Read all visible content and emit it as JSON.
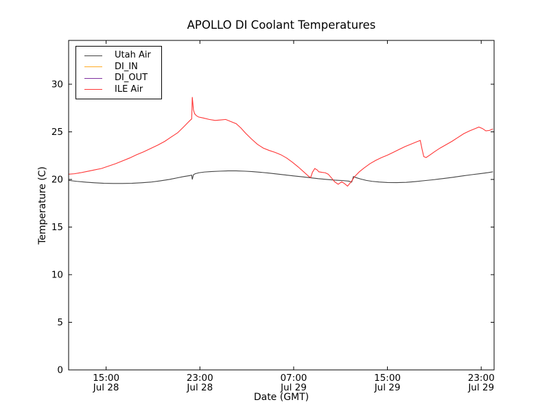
{
  "chart_data": {
    "type": "line",
    "title": "APOLLO DI Coolant Temperatures",
    "xlabel": "Date (GMT)",
    "ylabel": "Temperature (C)",
    "x_unit": "hours since Jul 28 00:00 GMT",
    "xlim": [
      11.8,
      48.1
    ],
    "ylim": [
      0,
      34.6
    ],
    "yticks": [
      0,
      5,
      10,
      15,
      20,
      25,
      30
    ],
    "xticks": [
      {
        "hour": 15,
        "time": "15:00",
        "date": "Jul 28"
      },
      {
        "hour": 23,
        "time": "23:00",
        "date": "Jul 28"
      },
      {
        "hour": 31,
        "time": "07:00",
        "date": "Jul 29"
      },
      {
        "hour": 39,
        "time": "15:00",
        "date": "Jul 29"
      },
      {
        "hour": 47,
        "time": "23:00",
        "date": "Jul 29"
      }
    ],
    "grid": false,
    "legend_position": "upper left",
    "axis_color": "#000000",
    "series": [
      {
        "name": "Utah Air",
        "color": "#404040",
        "points": [
          [
            11.8,
            19.9
          ],
          [
            12.5,
            19.8
          ],
          [
            13.2,
            19.72
          ],
          [
            14.0,
            19.65
          ],
          [
            14.8,
            19.6
          ],
          [
            15.6,
            19.58
          ],
          [
            16.4,
            19.58
          ],
          [
            17.2,
            19.6
          ],
          [
            18.0,
            19.65
          ],
          [
            18.8,
            19.72
          ],
          [
            19.6,
            19.85
          ],
          [
            20.4,
            20.0
          ],
          [
            21.0,
            20.15
          ],
          [
            21.6,
            20.3
          ],
          [
            22.1,
            20.4
          ],
          [
            22.3,
            20.45
          ],
          [
            22.35,
            20.0
          ],
          [
            22.45,
            20.5
          ],
          [
            22.6,
            20.6
          ],
          [
            22.9,
            20.7
          ],
          [
            23.4,
            20.78
          ],
          [
            24.0,
            20.83
          ],
          [
            24.7,
            20.87
          ],
          [
            25.4,
            20.9
          ],
          [
            26.1,
            20.9
          ],
          [
            26.8,
            20.87
          ],
          [
            27.5,
            20.82
          ],
          [
            28.2,
            20.75
          ],
          [
            28.9,
            20.67
          ],
          [
            29.6,
            20.57
          ],
          [
            30.3,
            20.47
          ],
          [
            31.0,
            20.37
          ],
          [
            31.7,
            20.28
          ],
          [
            32.4,
            20.18
          ],
          [
            33.1,
            20.08
          ],
          [
            33.8,
            20.0
          ],
          [
            34.5,
            19.93
          ],
          [
            35.2,
            19.88
          ],
          [
            35.7,
            19.82
          ],
          [
            35.95,
            19.72
          ],
          [
            36.1,
            20.3
          ],
          [
            36.3,
            20.2
          ],
          [
            36.7,
            20.05
          ],
          [
            37.2,
            19.9
          ],
          [
            37.7,
            19.8
          ],
          [
            38.3,
            19.73
          ],
          [
            39.0,
            19.68
          ],
          [
            39.8,
            19.67
          ],
          [
            40.6,
            19.7
          ],
          [
            41.4,
            19.78
          ],
          [
            42.2,
            19.88
          ],
          [
            43.0,
            19.98
          ],
          [
            43.8,
            20.1
          ],
          [
            44.6,
            20.23
          ],
          [
            45.4,
            20.37
          ],
          [
            46.2,
            20.5
          ],
          [
            47.0,
            20.62
          ],
          [
            47.6,
            20.72
          ],
          [
            48.0,
            20.8
          ]
        ]
      },
      {
        "name": "DI_IN",
        "color": "#ffaa22",
        "points": [
          [
            11.8,
            0
          ],
          [
            48.1,
            0
          ]
        ]
      },
      {
        "name": "DI_OUT",
        "color": "#7d2e9e",
        "points": [
          [
            11.8,
            0
          ],
          [
            48.1,
            0
          ]
        ]
      },
      {
        "name": "ILE Air",
        "color": "#ff3333",
        "points": [
          [
            11.8,
            20.55
          ],
          [
            12.3,
            20.6
          ],
          [
            12.8,
            20.7
          ],
          [
            13.4,
            20.85
          ],
          [
            14.0,
            21.0
          ],
          [
            14.6,
            21.15
          ],
          [
            15.2,
            21.4
          ],
          [
            15.8,
            21.65
          ],
          [
            16.4,
            21.95
          ],
          [
            17.0,
            22.25
          ],
          [
            17.6,
            22.6
          ],
          [
            18.2,
            22.9
          ],
          [
            18.8,
            23.25
          ],
          [
            19.4,
            23.6
          ],
          [
            20.0,
            24.0
          ],
          [
            20.6,
            24.5
          ],
          [
            21.1,
            24.9
          ],
          [
            21.6,
            25.5
          ],
          [
            22.0,
            26.0
          ],
          [
            22.2,
            26.25
          ],
          [
            22.3,
            26.35
          ],
          [
            22.35,
            28.65
          ],
          [
            22.45,
            27.3
          ],
          [
            22.55,
            26.9
          ],
          [
            22.7,
            26.7
          ],
          [
            22.9,
            26.55
          ],
          [
            23.3,
            26.45
          ],
          [
            23.8,
            26.3
          ],
          [
            24.3,
            26.2
          ],
          [
            24.8,
            26.25
          ],
          [
            25.2,
            26.3
          ],
          [
            25.7,
            26.05
          ],
          [
            26.1,
            25.85
          ],
          [
            26.5,
            25.4
          ],
          [
            26.9,
            24.85
          ],
          [
            27.4,
            24.25
          ],
          [
            27.9,
            23.7
          ],
          [
            28.4,
            23.3
          ],
          [
            28.9,
            23.05
          ],
          [
            29.4,
            22.85
          ],
          [
            29.9,
            22.6
          ],
          [
            30.4,
            22.25
          ],
          [
            30.9,
            21.8
          ],
          [
            31.4,
            21.3
          ],
          [
            31.9,
            20.75
          ],
          [
            32.3,
            20.3
          ],
          [
            32.45,
            20.2
          ],
          [
            32.6,
            20.75
          ],
          [
            32.8,
            21.15
          ],
          [
            33.0,
            21.0
          ],
          [
            33.15,
            20.8
          ],
          [
            33.4,
            20.75
          ],
          [
            33.7,
            20.7
          ],
          [
            33.95,
            20.55
          ],
          [
            34.2,
            20.2
          ],
          [
            34.5,
            19.75
          ],
          [
            34.8,
            19.5
          ],
          [
            35.1,
            19.75
          ],
          [
            35.3,
            19.6
          ],
          [
            35.6,
            19.3
          ],
          [
            35.9,
            19.75
          ],
          [
            36.2,
            20.3
          ],
          [
            36.6,
            20.8
          ],
          [
            37.0,
            21.2
          ],
          [
            37.5,
            21.65
          ],
          [
            38.0,
            22.0
          ],
          [
            38.5,
            22.3
          ],
          [
            39.0,
            22.55
          ],
          [
            39.5,
            22.85
          ],
          [
            40.0,
            23.15
          ],
          [
            40.5,
            23.45
          ],
          [
            41.0,
            23.7
          ],
          [
            41.5,
            23.95
          ],
          [
            41.8,
            24.1
          ],
          [
            41.95,
            23.2
          ],
          [
            42.1,
            22.4
          ],
          [
            42.3,
            22.3
          ],
          [
            42.6,
            22.55
          ],
          [
            43.0,
            22.9
          ],
          [
            43.5,
            23.3
          ],
          [
            44.0,
            23.65
          ],
          [
            44.5,
            24.0
          ],
          [
            45.0,
            24.4
          ],
          [
            45.5,
            24.8
          ],
          [
            46.0,
            25.1
          ],
          [
            46.5,
            25.35
          ],
          [
            46.8,
            25.5
          ],
          [
            47.1,
            25.35
          ],
          [
            47.4,
            25.1
          ],
          [
            47.7,
            25.15
          ],
          [
            48.0,
            25.3
          ]
        ]
      }
    ]
  }
}
